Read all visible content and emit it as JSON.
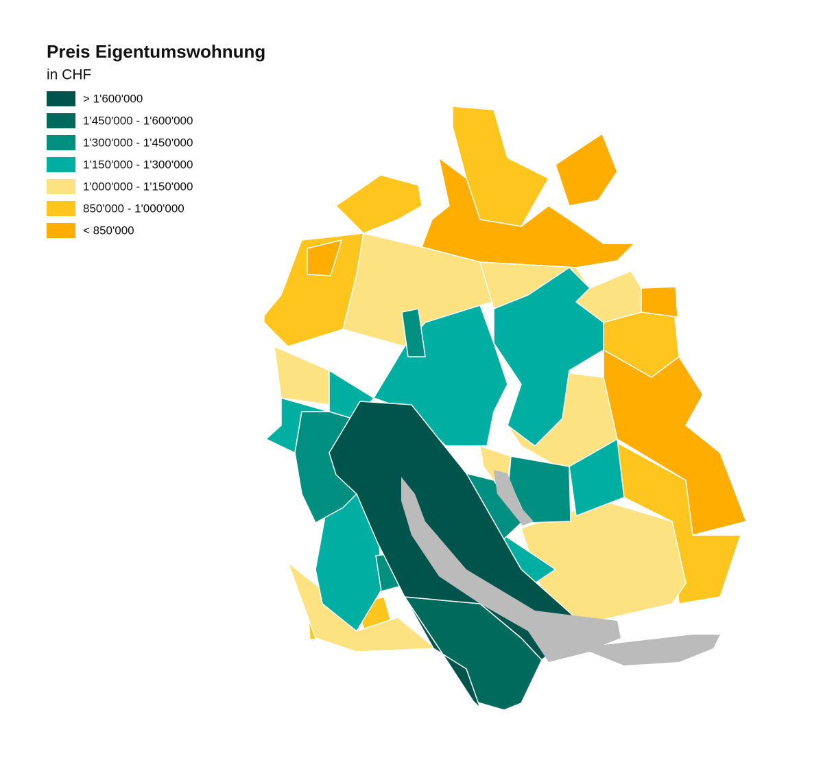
{
  "title": "Preis Eigentumswohnung",
  "subtitle": "in CHF",
  "legend": {
    "items": [
      {
        "label": "> 1'600'000",
        "color": "#00544c"
      },
      {
        "label": "1'450'000 - 1'600'000",
        "color": "#006b5c"
      },
      {
        "label": "1'300'000 - 1'450'000",
        "color": "#008f80"
      },
      {
        "label": "1'150'000 - 1'300'000",
        "color": "#00afa2"
      },
      {
        "label": "1'000'000 - 1'150'000",
        "color": "#fde282"
      },
      {
        "label": "850'000 - 1'000'000",
        "color": "#fec51f"
      },
      {
        "label": "< 850'000",
        "color": "#ffad00"
      }
    ]
  },
  "lake_color": "#bbbbbb"
}
